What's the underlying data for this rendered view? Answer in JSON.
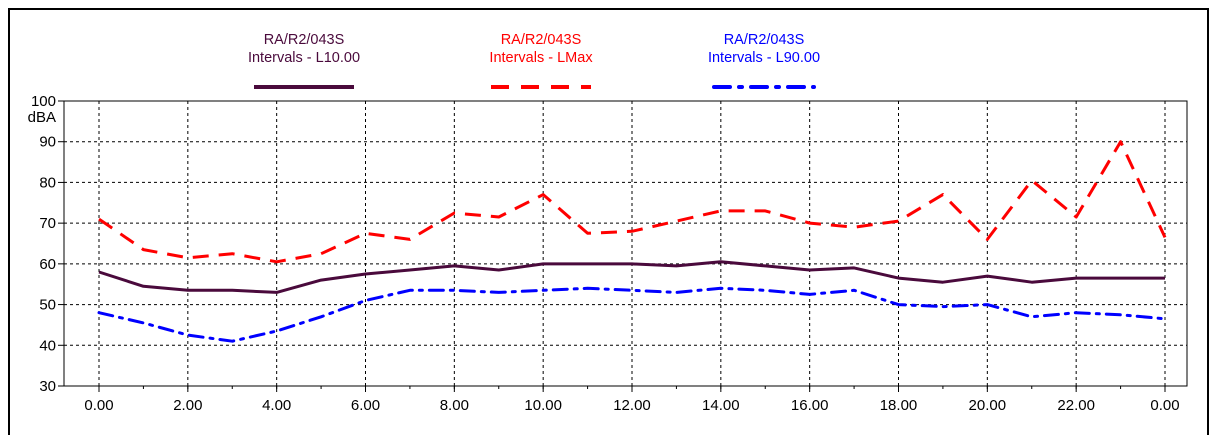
{
  "chart_data": {
    "type": "line",
    "ylabel": "dBA",
    "ylim": [
      30,
      100
    ],
    "yticks": [
      "30",
      "40",
      "50",
      "60",
      "70",
      "80",
      "90",
      "100"
    ],
    "xlim": [
      0,
      24
    ],
    "xticks": [
      "0.00",
      "2.00",
      "4.00",
      "6.00",
      "8.00",
      "10.00",
      "12.00",
      "14.00",
      "16.00",
      "18.00",
      "20.00",
      "22.00",
      "0.00"
    ],
    "grid": true,
    "legend": "top",
    "x": [
      0,
      1,
      2,
      3,
      4,
      5,
      6,
      7,
      8,
      9,
      10,
      11,
      12,
      13,
      14,
      15,
      16,
      17,
      18,
      19,
      20,
      21,
      22,
      23,
      24
    ],
    "series": [
      {
        "name_line1": "RA/R2/043S",
        "name_line2": "Intervals - L10.00",
        "color": "#4a0a3c",
        "style": "solid",
        "values": [
          58,
          54.5,
          53.5,
          53.5,
          53,
          56,
          57.5,
          58.5,
          59.5,
          58.5,
          60,
          60,
          60,
          59.5,
          60.5,
          59.5,
          58.5,
          59,
          56.5,
          55.5,
          57,
          55.5,
          56.5,
          56.5,
          56.5
        ]
      },
      {
        "name_line1": "RA/R2/043S",
        "name_line2": "Intervals - LMax",
        "color": "#ff0000",
        "style": "dash",
        "values": [
          71,
          63.5,
          61.5,
          62.5,
          60.5,
          62.5,
          67.5,
          66,
          72.5,
          71.5,
          77,
          67.5,
          68,
          70.5,
          73,
          73,
          70,
          69,
          70.5,
          77,
          66,
          80.5,
          71.5,
          90,
          66.5
        ]
      },
      {
        "name_line1": "RA/R2/043S",
        "name_line2": "Intervals - L90.00",
        "color": "#0000ff",
        "style": "dashdot",
        "values": [
          48,
          45.5,
          42.5,
          41,
          43.5,
          47,
          51,
          53.5,
          53.5,
          53,
          53.5,
          54,
          53.5,
          53,
          54,
          53.5,
          52.5,
          53.5,
          50,
          49.5,
          50,
          47,
          48,
          47.5,
          46.5
        ]
      }
    ]
  }
}
